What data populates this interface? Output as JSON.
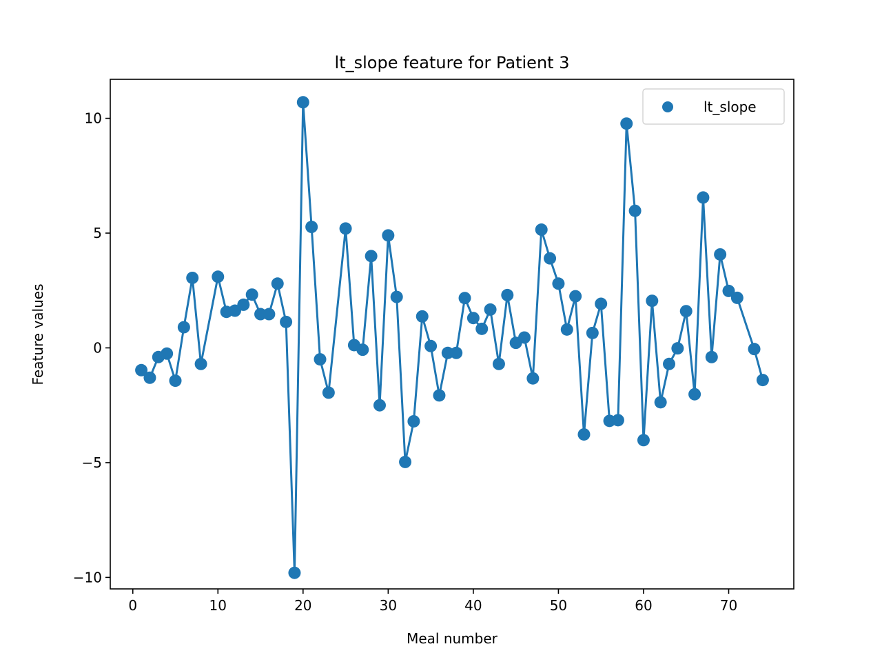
{
  "chart_data": {
    "type": "line",
    "title": "lt_slope feature for Patient 3",
    "xlabel": "Meal number",
    "ylabel": "Feature values",
    "xlim": [
      -2.65,
      77.65
    ],
    "ylim": [
      -10.5,
      11.7
    ],
    "xticks": [
      0,
      10,
      20,
      30,
      40,
      50,
      60,
      70
    ],
    "yticks": [
      -10,
      -5,
      0,
      5,
      10
    ],
    "ytick_labels": [
      "−10",
      "−5",
      "0",
      "5",
      "10"
    ],
    "grid": false,
    "legend_position": "top-right",
    "color": "#1f77b4",
    "series": [
      {
        "name": "lt_slope",
        "marker": "circle",
        "x": [
          1,
          2,
          3,
          4,
          5,
          6,
          7,
          8,
          10,
          11,
          12,
          13,
          14,
          15,
          16,
          17,
          18,
          19,
          20,
          21,
          22,
          23,
          25,
          26,
          27,
          28,
          29,
          30,
          31,
          32,
          33,
          34,
          35,
          36,
          37,
          38,
          39,
          40,
          41,
          42,
          43,
          44,
          45,
          46,
          47,
          48,
          49,
          50,
          51,
          52,
          53,
          54,
          55,
          56,
          57,
          58,
          59,
          60,
          61,
          62,
          63,
          64,
          65,
          66,
          67,
          68,
          69,
          70,
          71,
          73,
          74
        ],
        "y": [
          -0.97,
          -1.3,
          -0.4,
          -0.25,
          -1.43,
          0.9,
          3.05,
          -0.7,
          3.1,
          1.57,
          1.62,
          1.88,
          2.32,
          1.47,
          1.47,
          2.8,
          1.13,
          -9.8,
          10.7,
          5.27,
          -0.5,
          -1.95,
          5.2,
          0.12,
          -0.08,
          4.0,
          -2.5,
          4.9,
          2.22,
          -4.97,
          -3.2,
          1.37,
          0.08,
          -2.07,
          -0.22,
          -0.22,
          2.17,
          1.3,
          0.83,
          1.67,
          -0.7,
          2.3,
          0.22,
          0.45,
          -1.33,
          5.15,
          3.9,
          2.8,
          0.8,
          2.25,
          -3.77,
          0.65,
          1.92,
          -3.18,
          -3.15,
          9.77,
          5.97,
          -4.02,
          2.05,
          -2.37,
          -0.7,
          -0.02,
          1.6,
          -2.02,
          6.55,
          -0.4,
          4.07,
          2.48,
          2.18,
          -0.05,
          -1.4
        ]
      }
    ]
  }
}
